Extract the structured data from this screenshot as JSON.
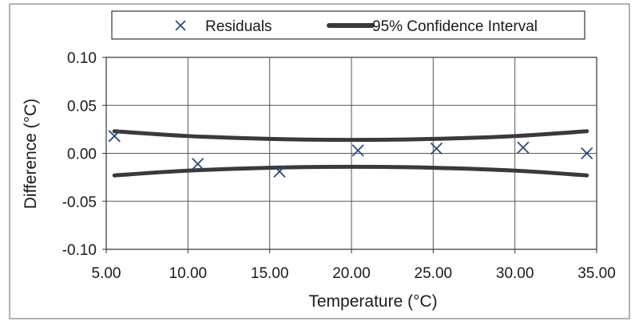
{
  "chart_data": {
    "type": "scatter",
    "title": "",
    "xlabel": "Temperature (°C)",
    "ylabel": "Difference (°C)",
    "xlim": [
      5,
      35
    ],
    "ylim": [
      -0.1,
      0.1
    ],
    "x_ticks": [
      "5.00",
      "10.00",
      "15.00",
      "20.00",
      "25.00",
      "30.00",
      "35.00"
    ],
    "y_ticks": [
      "0.10",
      "0.05",
      "0.00",
      "-0.05",
      "-0.10"
    ],
    "x_tick_values": [
      5,
      10,
      15,
      20,
      25,
      30,
      35
    ],
    "y_tick_values": [
      0.1,
      0.05,
      0.0,
      -0.05,
      -0.1
    ],
    "grid": true,
    "legend_placement": "top",
    "series": [
      {
        "name": "Residuals",
        "kind": "scatter",
        "marker": "x",
        "color": "#2e4a7a",
        "x": [
          5.5,
          10.6,
          15.6,
          20.4,
          25.2,
          30.5,
          34.4
        ],
        "y": [
          0.018,
          -0.011,
          -0.019,
          0.003,
          0.005,
          0.006,
          0.0
        ]
      },
      {
        "name": "95% Confidence Interval",
        "kind": "line",
        "color": "#3a3a3a",
        "x": [
          5.5,
          10,
          15,
          20,
          25,
          30,
          34.4
        ],
        "upper": [
          0.023,
          0.018,
          0.015,
          0.014,
          0.015,
          0.018,
          0.023
        ],
        "lower": [
          -0.023,
          -0.018,
          -0.015,
          -0.014,
          -0.015,
          -0.018,
          -0.023
        ]
      }
    ]
  }
}
